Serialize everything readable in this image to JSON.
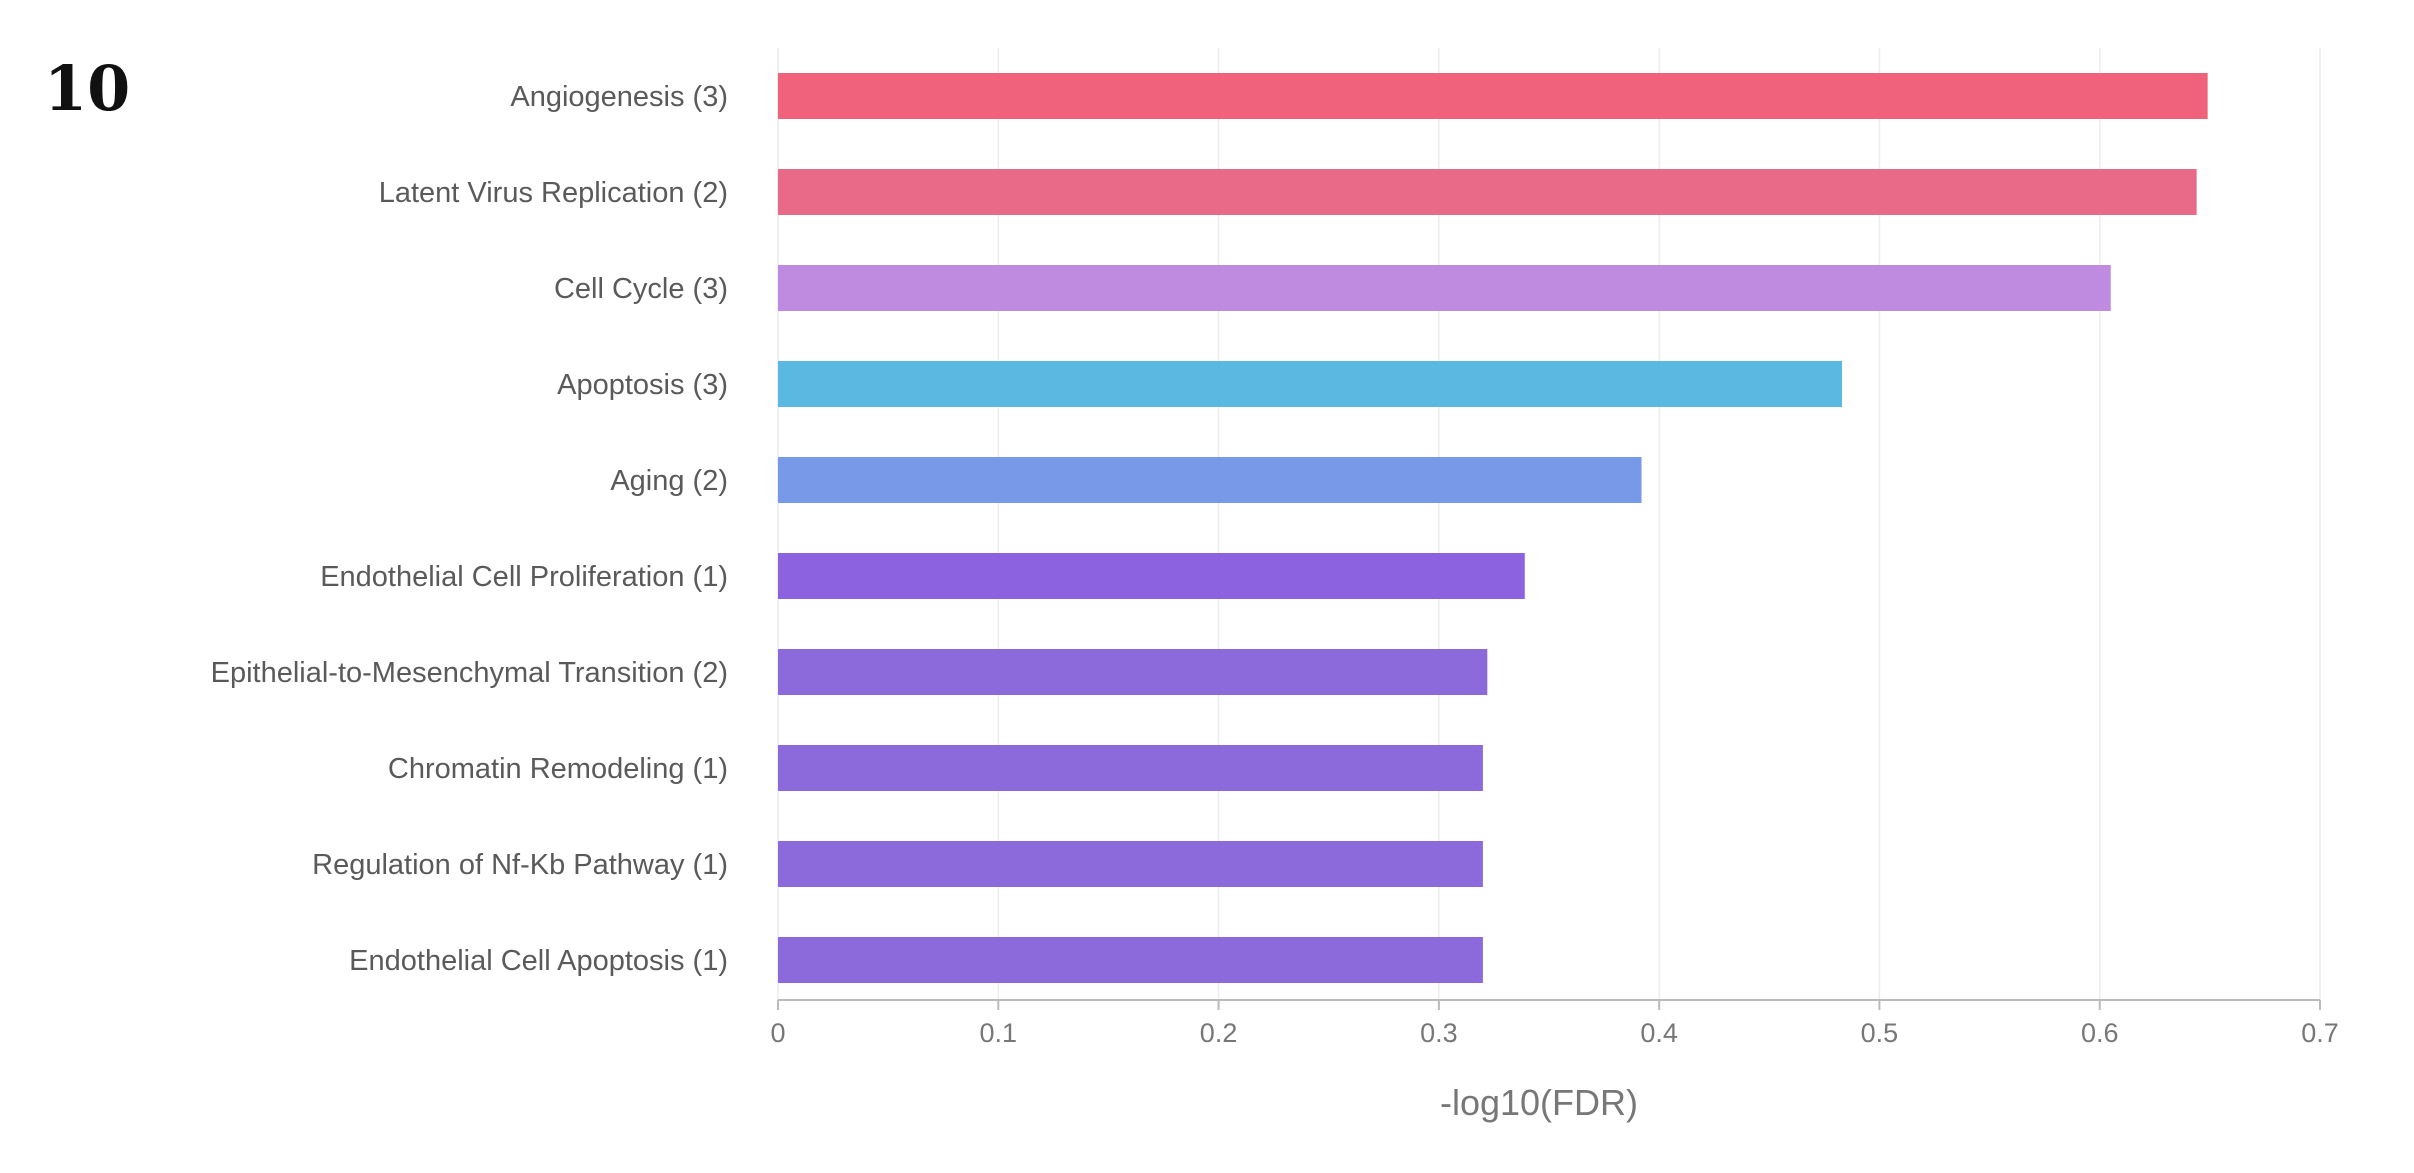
{
  "panel_label": "10",
  "chart_data": {
    "type": "bar",
    "orientation": "horizontal",
    "title": "",
    "xlabel": "-log10(FDR)",
    "ylabel": "",
    "xlim": [
      0,
      0.7
    ],
    "xticks": [
      "0",
      "0.1",
      "0.2",
      "0.3",
      "0.4",
      "0.5",
      "0.6",
      "0.7"
    ],
    "grid": true,
    "categories": [
      "Angiogenesis (3)",
      "Latent Virus Replication (2)",
      "Cell Cycle (3)",
      "Apoptosis (3)",
      "Aging (2)",
      "Endothelial Cell Proliferation (1)",
      "Epithelial-to-Mesenchymal Transition (2)",
      "Chromatin Remodeling (1)",
      "Regulation of Nf-Kb Pathway (1)",
      "Endothelial Cell Apoptosis (1)"
    ],
    "values": [
      0.649,
      0.644,
      0.605,
      0.483,
      0.392,
      0.339,
      0.322,
      0.32,
      0.32,
      0.32
    ],
    "colors": [
      "#f0627b",
      "#e96a88",
      "#bf8be0",
      "#5bb8e0",
      "#7898e8",
      "#8d62e0",
      "#8d6adc",
      "#8d6adc",
      "#8d6adc",
      "#8d6adc"
    ]
  }
}
